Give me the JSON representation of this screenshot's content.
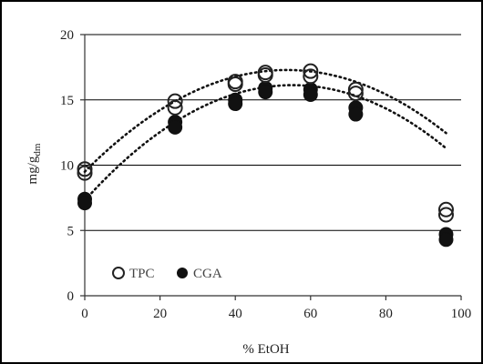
{
  "chart_data": {
    "type": "scatter",
    "xlabel": "% EtOH",
    "ylabel": "mg/g",
    "ylabel_subscript": "dm",
    "xlim": [
      0,
      100
    ],
    "ylim": [
      0,
      20
    ],
    "x_ticks": [
      "0",
      "20",
      "40",
      "60",
      "80",
      "100"
    ],
    "y_ticks": [
      "0",
      "5",
      "10",
      "15",
      "20"
    ],
    "grid": "horizontal",
    "legend_position": "bottom-left",
    "series": [
      {
        "name": "TPC",
        "marker": "open-circle",
        "points": [
          [
            0,
            9.7
          ],
          [
            0,
            9.4
          ],
          [
            24,
            14.9
          ],
          [
            24,
            14.4
          ],
          [
            40,
            16.4
          ],
          [
            40,
            16.2
          ],
          [
            48,
            17.1
          ],
          [
            48,
            16.9
          ],
          [
            60,
            17.2
          ],
          [
            60,
            16.8
          ],
          [
            72,
            15.8
          ],
          [
            72,
            15.5
          ],
          [
            96,
            6.6
          ],
          [
            96,
            6.2
          ]
        ],
        "trend_coefficients": [
          9.5,
          0.29,
          -0.0027
        ]
      },
      {
        "name": "CGA",
        "marker": "filled-circle",
        "points": [
          [
            0,
            7.4
          ],
          [
            0,
            7.1
          ],
          [
            24,
            13.3
          ],
          [
            24,
            12.9
          ],
          [
            40,
            15.0
          ],
          [
            40,
            14.7
          ],
          [
            48,
            15.9
          ],
          [
            48,
            15.6
          ],
          [
            60,
            15.8
          ],
          [
            60,
            15.4
          ],
          [
            72,
            14.4
          ],
          [
            72,
            13.9
          ],
          [
            96,
            4.7
          ],
          [
            96,
            4.3
          ]
        ],
        "trend_coefficients": [
          7.3,
          0.32,
          -0.0029
        ]
      }
    ],
    "colors": {
      "axis": "#333333",
      "grid": "#000000",
      "open_marker_stroke": "#222222",
      "filled_marker": "#111111",
      "trend": "#111111"
    }
  }
}
